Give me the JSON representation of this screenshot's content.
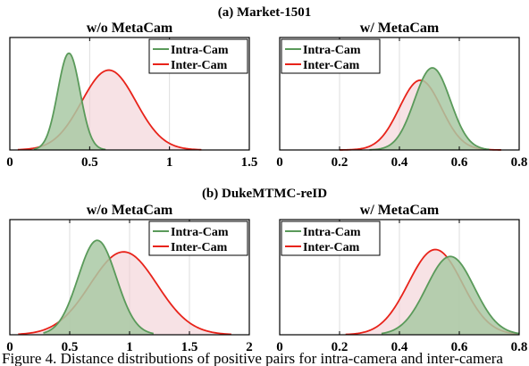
{
  "figure": {
    "section_titles": [
      "(a) Market-1501",
      "(b) DukeMTMC-reID"
    ],
    "caption": "Figure 4. Distance distributions of positive pairs for intra-camera and inter-camera"
  },
  "colors": {
    "intra_line": "#5a9a5a",
    "intra_fill": "#a9c9a4",
    "inter_line": "#e8231a",
    "inter_fill": "#f2cfd3",
    "grid": "#dddddd"
  },
  "chart_data": [
    {
      "type": "area",
      "title": "w/o MetaCam",
      "xlim": [
        0,
        1.5
      ],
      "xticks": [
        0,
        0.5,
        1,
        1.5
      ],
      "xtick_labels": [
        "0",
        "0.5",
        "1",
        "1.5"
      ],
      "grid": "vertical",
      "legend_position": "top-right",
      "series": [
        {
          "name": "Intra-Cam",
          "kind": "gaussian",
          "mean": 0.37,
          "std": 0.07,
          "x_range": [
            0.15,
            0.6
          ],
          "peak": 0.86
        },
        {
          "name": "Inter-Cam",
          "kind": "gaussian",
          "mean": 0.62,
          "std": 0.17,
          "x_range": [
            0.05,
            1.2
          ],
          "peak": 0.71
        }
      ]
    },
    {
      "type": "area",
      "title": "w/ MetaCam",
      "xlim": [
        0,
        0.8
      ],
      "xticks": [
        0,
        0.2,
        0.4,
        0.6,
        0.8
      ],
      "xtick_labels": [
        "0",
        "0.2",
        "0.4",
        "0.6",
        "0.8"
      ],
      "grid": "vertical",
      "legend_position": "top-left",
      "series": [
        {
          "name": "Intra-Cam",
          "kind": "gaussian",
          "mean": 0.51,
          "std": 0.06,
          "x_range": [
            0.3,
            0.7
          ],
          "peak": 0.73
        },
        {
          "name": "Inter-Cam",
          "kind": "gaussian",
          "mean": 0.47,
          "std": 0.07,
          "x_range": [
            0.2,
            0.74
          ],
          "peak": 0.62
        }
      ]
    },
    {
      "type": "area",
      "title": "w/o MetaCam",
      "xlim": [
        0,
        2
      ],
      "xticks": [
        0,
        0.5,
        1,
        1.5,
        2
      ],
      "xtick_labels": [
        "0",
        "0.5",
        "1",
        "1.5",
        "2"
      ],
      "grid": "vertical",
      "legend_position": "top-right",
      "series": [
        {
          "name": "Intra-Cam",
          "kind": "gaussian",
          "mean": 0.73,
          "std": 0.16,
          "x_range": [
            0.28,
            1.2
          ],
          "peak": 0.82
        },
        {
          "name": "Inter-Cam",
          "kind": "gaussian",
          "mean": 0.95,
          "std": 0.28,
          "x_range": [
            0.07,
            1.85
          ],
          "peak": 0.72
        }
      ]
    },
    {
      "type": "area",
      "title": "w/ MetaCam",
      "xlim": [
        0,
        0.8
      ],
      "xticks": [
        0,
        0.2,
        0.4,
        0.6,
        0.8
      ],
      "xtick_labels": [
        "0",
        "0.2",
        "0.4",
        "0.6",
        "0.8"
      ],
      "grid": "vertical",
      "legend_position": "top-left",
      "series": [
        {
          "name": "Intra-Cam",
          "kind": "gaussian",
          "mean": 0.57,
          "std": 0.08,
          "x_range": [
            0.34,
            0.8
          ],
          "peak": 0.68
        },
        {
          "name": "Inter-Cam",
          "kind": "gaussian",
          "mean": 0.52,
          "std": 0.09,
          "x_range": [
            0.22,
            0.8
          ],
          "peak": 0.74
        }
      ]
    }
  ]
}
